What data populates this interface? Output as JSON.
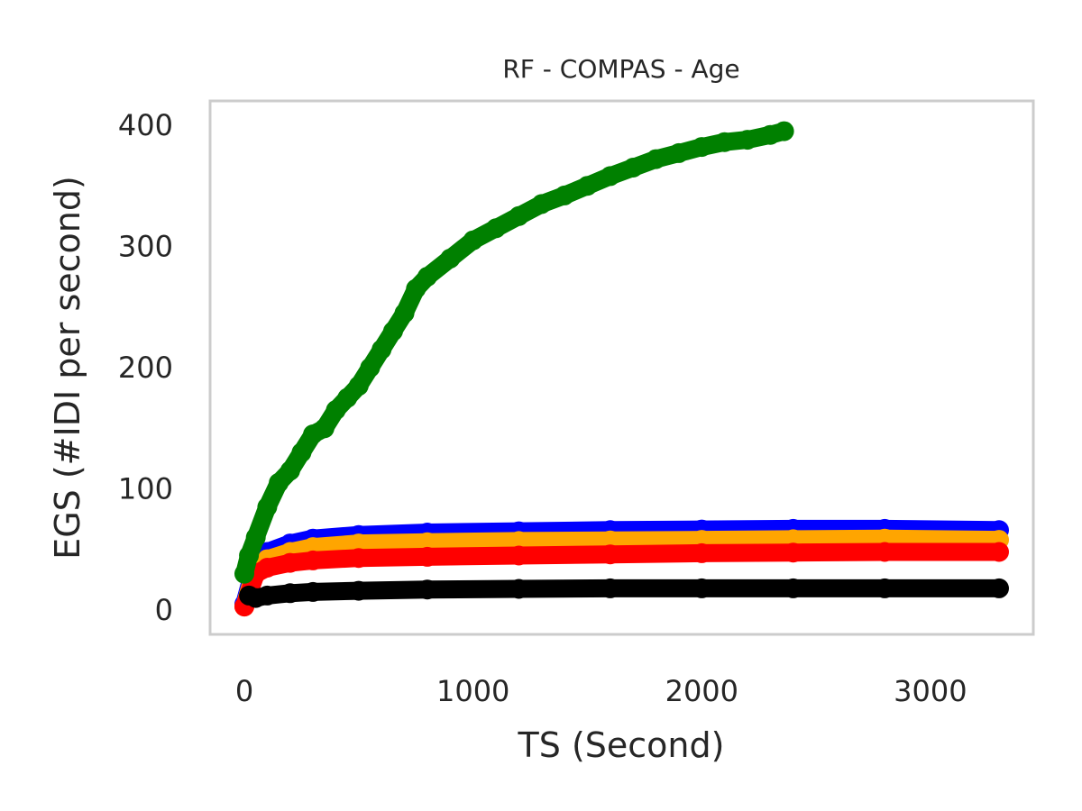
{
  "chart_data": {
    "type": "scatter",
    "title": "RF - COMPAS - Age",
    "xlabel": "TS (Second)",
    "ylabel": "EGS (#IDI  per second)",
    "xlim": [
      -150,
      3450
    ],
    "ylim": [
      -20,
      420
    ],
    "xticks": [
      0,
      1000,
      2000,
      3000
    ],
    "yticks": [
      0,
      100,
      200,
      300,
      400
    ],
    "grid": false,
    "series": [
      {
        "color": "#0000ff",
        "x": [
          0,
          50,
          100,
          200,
          300,
          500,
          800,
          1200,
          1600,
          2000,
          2400,
          2800,
          3300
        ],
        "y": [
          5,
          40,
          48,
          55,
          59,
          62,
          64,
          65,
          66,
          66.5,
          67,
          67,
          66
        ]
      },
      {
        "color": "#ffa500",
        "x": [
          0,
          50,
          100,
          200,
          300,
          500,
          800,
          1200,
          1600,
          2000,
          2400,
          2800,
          3300
        ],
        "y": [
          3,
          35,
          42,
          48,
          52,
          55,
          56,
          57,
          57.5,
          58,
          58.5,
          59,
          58
        ]
      },
      {
        "color": "#ff0000",
        "x": [
          0,
          50,
          100,
          200,
          300,
          500,
          800,
          1200,
          1600,
          2000,
          2400,
          2800,
          3300
        ],
        "y": [
          3,
          30,
          35,
          39,
          41,
          43,
          44,
          45,
          46,
          47,
          47.5,
          48,
          48
        ]
      },
      {
        "color": "#008000",
        "x": [
          0,
          20,
          50,
          100,
          150,
          200,
          250,
          300,
          350,
          400,
          450,
          500,
          550,
          600,
          650,
          700,
          750,
          800,
          900,
          1000,
          1100,
          1200,
          1300,
          1400,
          1500,
          1600,
          1700,
          1800,
          1900,
          2000,
          2100,
          2200,
          2300,
          2360
        ],
        "y": [
          30,
          45,
          60,
          85,
          105,
          115,
          130,
          145,
          150,
          165,
          175,
          185,
          200,
          215,
          230,
          245,
          265,
          275,
          290,
          305,
          315,
          325,
          335,
          342,
          350,
          358,
          365,
          372,
          377,
          382,
          386,
          388,
          392,
          395
        ]
      },
      {
        "color": "#000000",
        "x": [
          20,
          50,
          100,
          200,
          300,
          500,
          800,
          1200,
          1600,
          2000,
          2400,
          2800,
          3300
        ],
        "y": [
          12,
          10,
          12,
          14,
          15,
          16,
          17,
          17.5,
          18,
          18,
          18,
          18,
          18
        ]
      }
    ]
  }
}
